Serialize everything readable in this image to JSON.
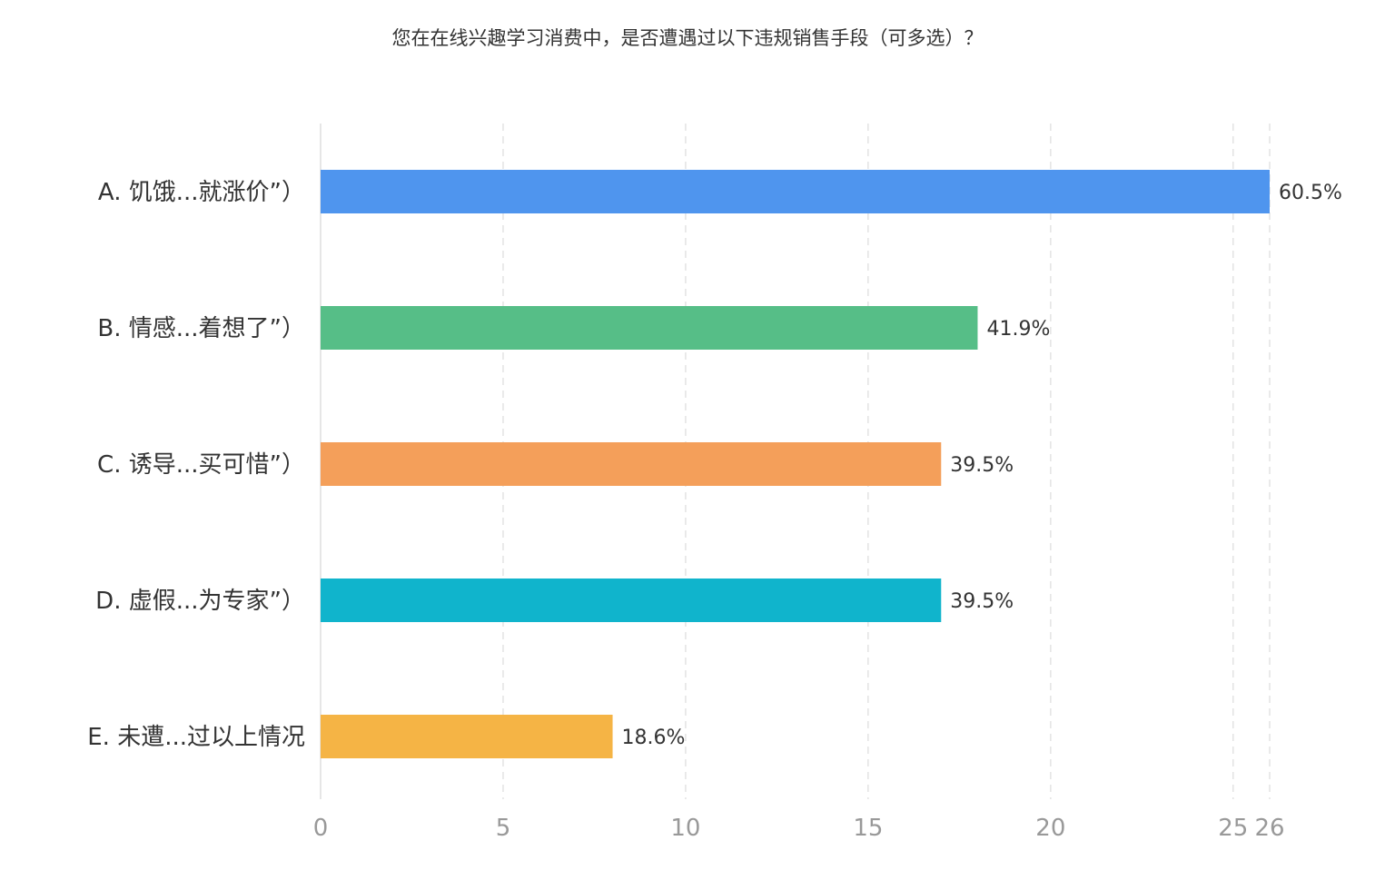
{
  "chart_data": {
    "type": "bar",
    "orientation": "horizontal",
    "title": "您在在线兴趣学习消费中，是否遭遇过以下违规销售手段（可多选）？",
    "xlabel": "",
    "ylabel": "",
    "categories": [
      "A. 饥饿...就涨价”）",
      "B. 情感...着想了”）",
      "C. 诱导...买可惜”）",
      "D. 虚假...为专家”）",
      "E. 未遭...过以上情况"
    ],
    "values": [
      26,
      18,
      17,
      17,
      8
    ],
    "value_labels": [
      "60.5%",
      "41.9%",
      "39.5%",
      "39.5%",
      "18.6%"
    ],
    "colors": [
      "#4f95ee",
      "#56be87",
      "#f49f5a",
      "#10b4cc",
      "#f5b445"
    ],
    "xlim": [
      0,
      26
    ],
    "xticks": [
      0,
      5,
      10,
      15,
      20,
      25,
      26
    ],
    "xtick_labels": [
      "0",
      "5",
      "10",
      "15",
      "20",
      "25",
      "26"
    ],
    "grid": "vertical dashed",
    "legend": "none"
  }
}
